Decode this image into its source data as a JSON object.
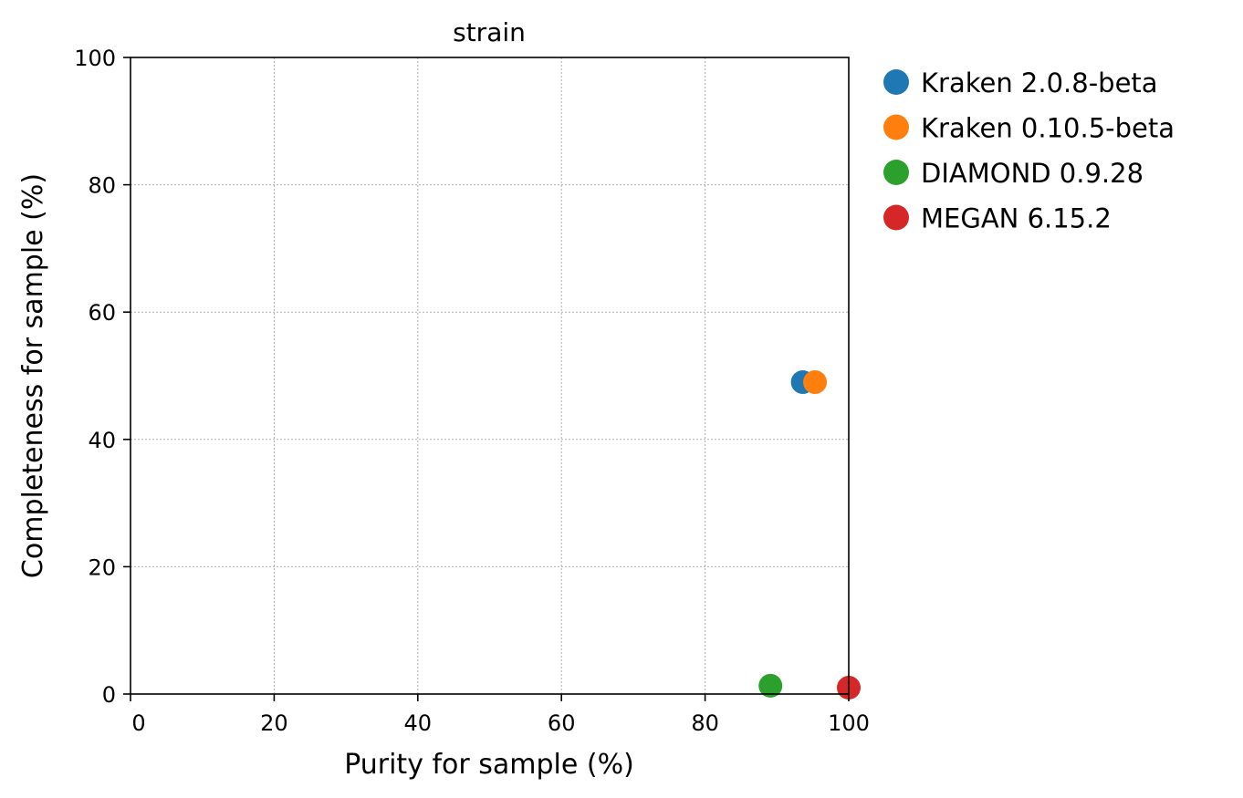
{
  "chart_data": {
    "type": "scatter",
    "title": "strain",
    "xlabel": "Purity for sample (%)",
    "ylabel": "Completeness for sample (%)",
    "xlim": [
      0,
      100
    ],
    "ylim": [
      0,
      100
    ],
    "xticks": [
      0,
      20,
      40,
      60,
      80,
      100
    ],
    "yticks": [
      0,
      20,
      40,
      60,
      80,
      100
    ],
    "grid": true,
    "legend_position": "outside-right",
    "series": [
      {
        "name": "Kraken 2.0.8-beta",
        "color": "#1f77b4",
        "points": [
          {
            "x": 93.6,
            "y": 49.0
          }
        ]
      },
      {
        "name": "Kraken 0.10.5-beta",
        "color": "#ff7f0e",
        "points": [
          {
            "x": 95.3,
            "y": 49.0
          }
        ]
      },
      {
        "name": "DIAMOND 0.9.28",
        "color": "#2ca02c",
        "points": [
          {
            "x": 89.1,
            "y": 1.3
          }
        ]
      },
      {
        "name": "MEGAN 6.15.2",
        "color": "#d62728",
        "points": [
          {
            "x": 100.0,
            "y": 1.0
          }
        ]
      }
    ]
  }
}
